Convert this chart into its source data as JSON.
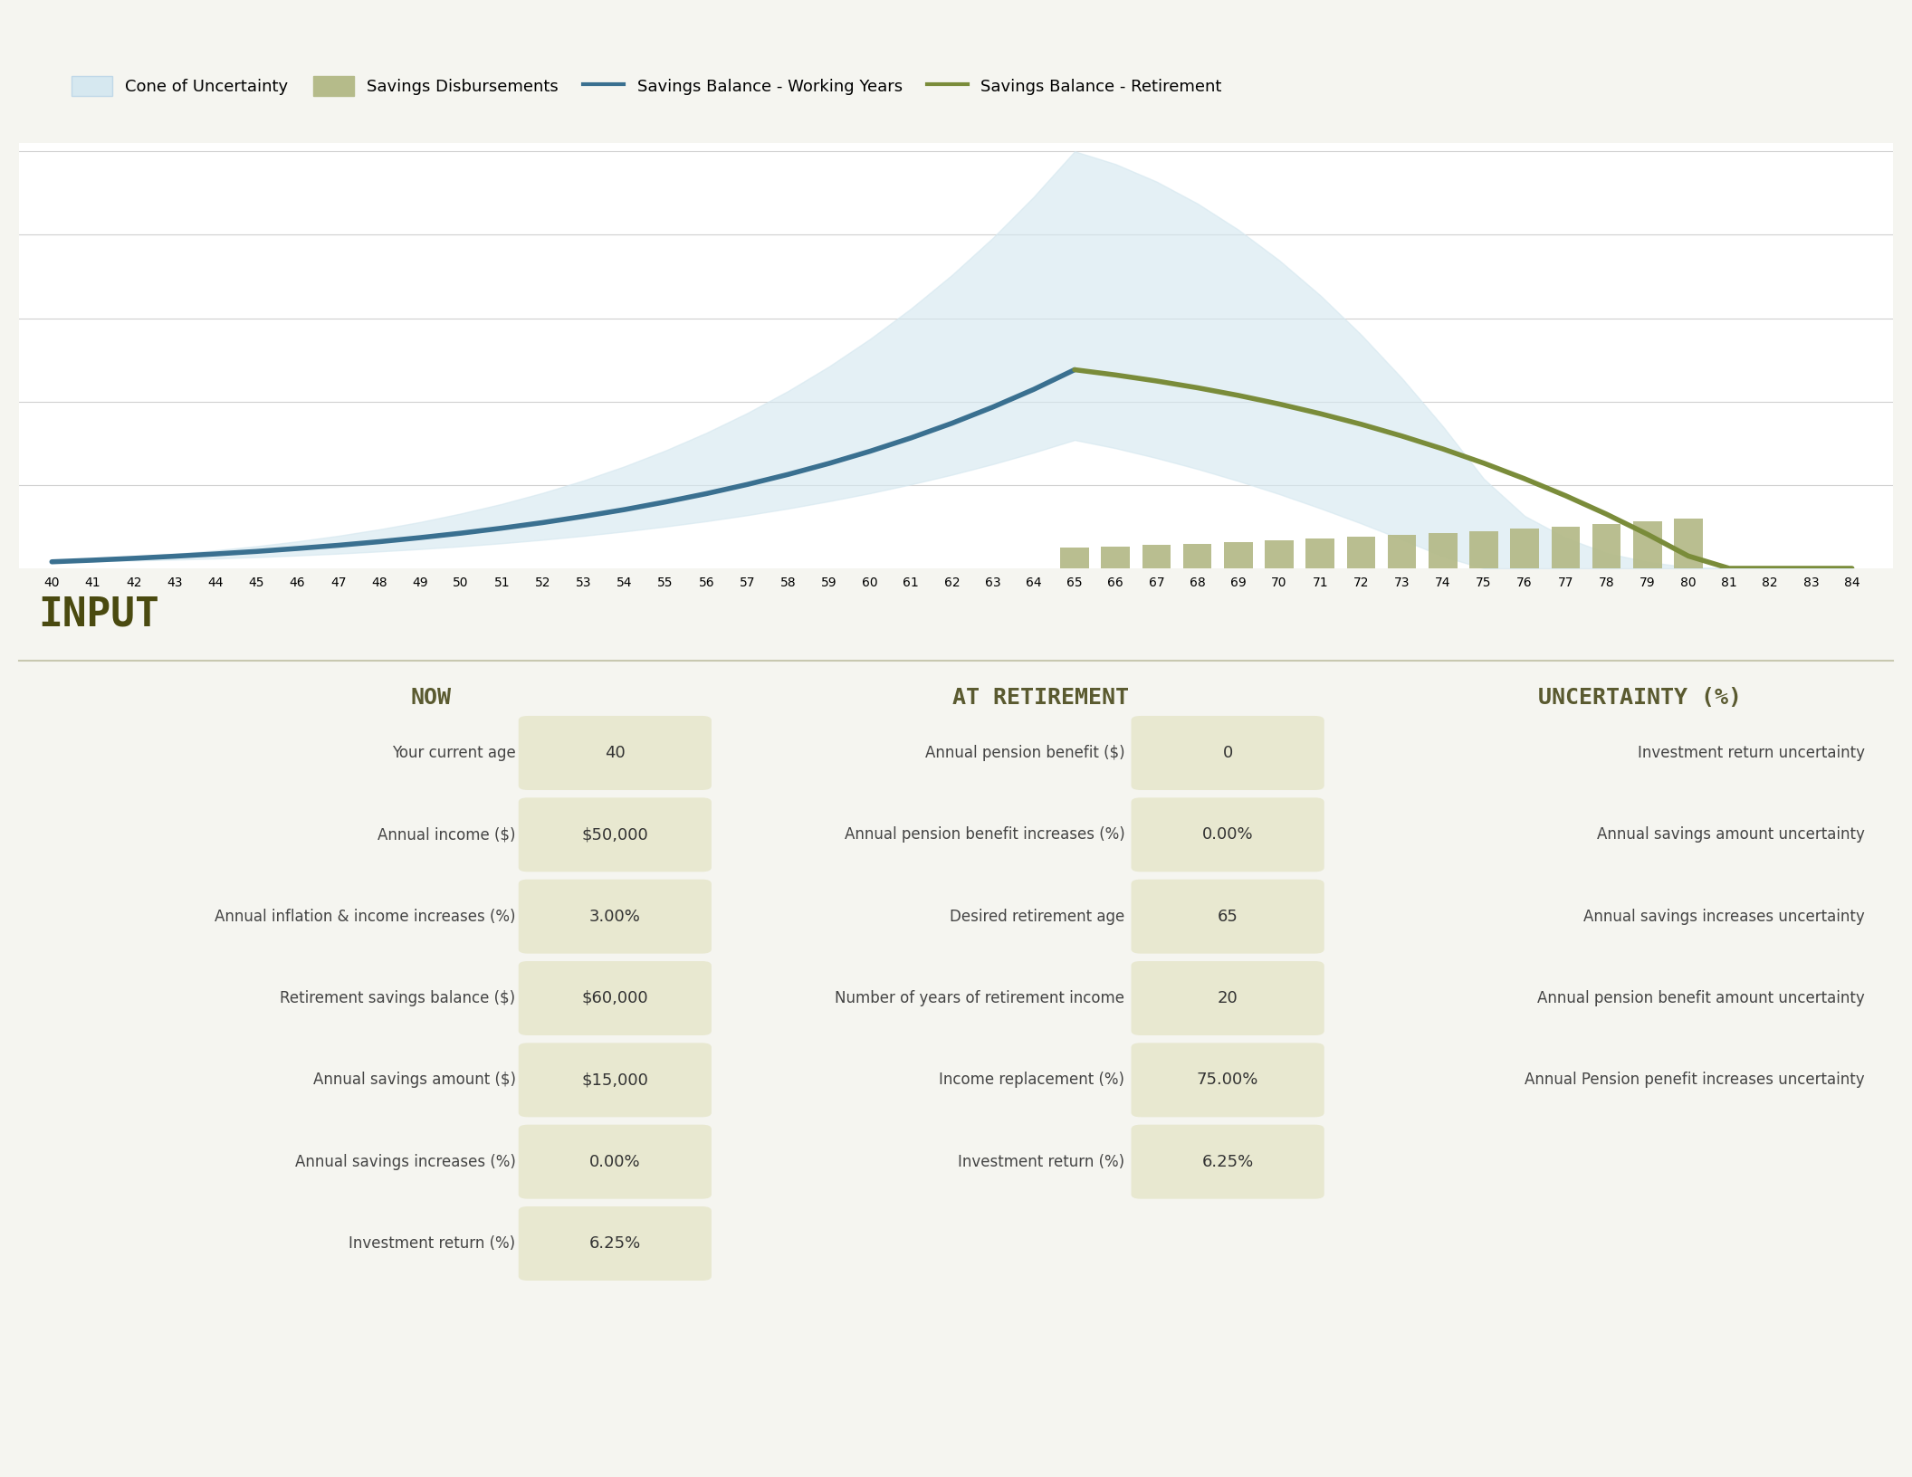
{
  "bg_color": "#f5f5f0",
  "chart_bg": "#ffffff",
  "ages": [
    40,
    41,
    42,
    43,
    44,
    45,
    46,
    47,
    48,
    49,
    50,
    51,
    52,
    53,
    54,
    55,
    56,
    57,
    58,
    59,
    60,
    61,
    62,
    63,
    64,
    65,
    66,
    67,
    68,
    69,
    70,
    71,
    72,
    73,
    74,
    75,
    76,
    77,
    78,
    79,
    80,
    81,
    82,
    83,
    84
  ],
  "working_ages": [
    40,
    41,
    42,
    43,
    44,
    45,
    46,
    47,
    48,
    49,
    50,
    51,
    52,
    53,
    54,
    55,
    56,
    57,
    58,
    59,
    60,
    61,
    62,
    63,
    64,
    65
  ],
  "retirement_ages": [
    65,
    66,
    67,
    68,
    69,
    70,
    71,
    72,
    73,
    74,
    75,
    76,
    77,
    78,
    79,
    80,
    81,
    82,
    83,
    84
  ],
  "savings_working": [
    60000,
    75000,
    92000,
    111000,
    132000,
    155000,
    182000,
    211000,
    244000,
    281000,
    322000,
    368000,
    419000,
    476000,
    538000,
    608000,
    684000,
    768000,
    860000,
    961000,
    1072000,
    1194000,
    1328000,
    1476000,
    1638000,
    1818000
  ],
  "savings_retirement": [
    1818000,
    1770000,
    1715000,
    1653000,
    1583000,
    1504000,
    1416000,
    1319000,
    1211000,
    1093000,
    963000,
    820000,
    665000,
    496000,
    312000,
    113000,
    0,
    0,
    0,
    0
  ],
  "disbursements": [
    0,
    0,
    0,
    0,
    0,
    0,
    0,
    0,
    0,
    0,
    0,
    0,
    0,
    0,
    0,
    0,
    0,
    0,
    0,
    0,
    0,
    0,
    0,
    0,
    0,
    45000,
    47700,
    50562,
    53596,
    56811,
    60220,
    63833,
    67663,
    71723,
    76026,
    80588,
    85423,
    90548,
    95981,
    101840,
    108150,
    0,
    0,
    0,
    0
  ],
  "cone_upper": [
    60000,
    80000,
    105000,
    133000,
    165000,
    203000,
    247000,
    298000,
    357000,
    424000,
    502000,
    590000,
    691000,
    805000,
    934000,
    1079000,
    1241000,
    1422000,
    1624000,
    1849000,
    2100000,
    2378000,
    2685000,
    3025000,
    3401000,
    3817000,
    3700000,
    3540000,
    3340000,
    3100000,
    2820000,
    2500000,
    2140000,
    1740000,
    1300000,
    820000,
    480000,
    280000,
    140000,
    60000,
    10000,
    0,
    0,
    0,
    0
  ],
  "cone_lower": [
    60000,
    65000,
    72000,
    80000,
    90000,
    103000,
    118000,
    135000,
    155000,
    177000,
    202000,
    230000,
    262000,
    298000,
    338000,
    383000,
    432000,
    487000,
    548000,
    615000,
    688000,
    769000,
    857000,
    954000,
    1060000,
    1175000,
    1100000,
    1010000,
    910000,
    800000,
    680000,
    550000,
    412000,
    265000,
    110000,
    0,
    0,
    0,
    0,
    0,
    0,
    0,
    0,
    0,
    0
  ],
  "working_line_color": "#3a7090",
  "retirement_line_color": "#7a8c3a",
  "disbursement_color": "#b5bb8a",
  "cone_color": "#d6e8f0",
  "cone_edge_color": "#c0d8e8",
  "input_title_color": "#4a4a10",
  "header_color": "#5a5a30",
  "value_bg_color": "#e8e8d0",
  "input_section_bg": "#f8f8f0",
  "legend_labels": [
    "Cone of Uncertainty",
    "Savings Disbursements",
    "Savings Balance - Working Years",
    "Savings Balance - Retirement"
  ],
  "now_labels": [
    "Your current age",
    "Annual income ($)",
    "Annual inflation & income increases (%)",
    "Retirement savings balance ($)",
    "Annual savings amount ($)",
    "Annual savings increases (%)",
    "Investment return (%)"
  ],
  "now_values": [
    "40",
    "$50,000",
    "3.00%",
    "$60,000",
    "$15,000",
    "0.00%",
    "6.25%"
  ],
  "retirement_labels": [
    "Annual pension benefit ($)",
    "Annual pension benefit increases (%)",
    "Desired retirement age",
    "Number of years of retirement income",
    "Income replacement (%)",
    "Investment return (%)"
  ],
  "retirement_values": [
    "0",
    "0.00%",
    "65",
    "20",
    "75.00%",
    "6.25%"
  ],
  "uncertainty_labels": [
    "Investment return uncertainty",
    "Annual savings amount uncertainty",
    "Annual savings increases uncertainty",
    "Annual pension benefit amount uncertainty",
    "Annual Pension penefit increases uncertainty"
  ],
  "uncertainty_values": [
    "",
    "",
    "",
    "",
    ""
  ]
}
